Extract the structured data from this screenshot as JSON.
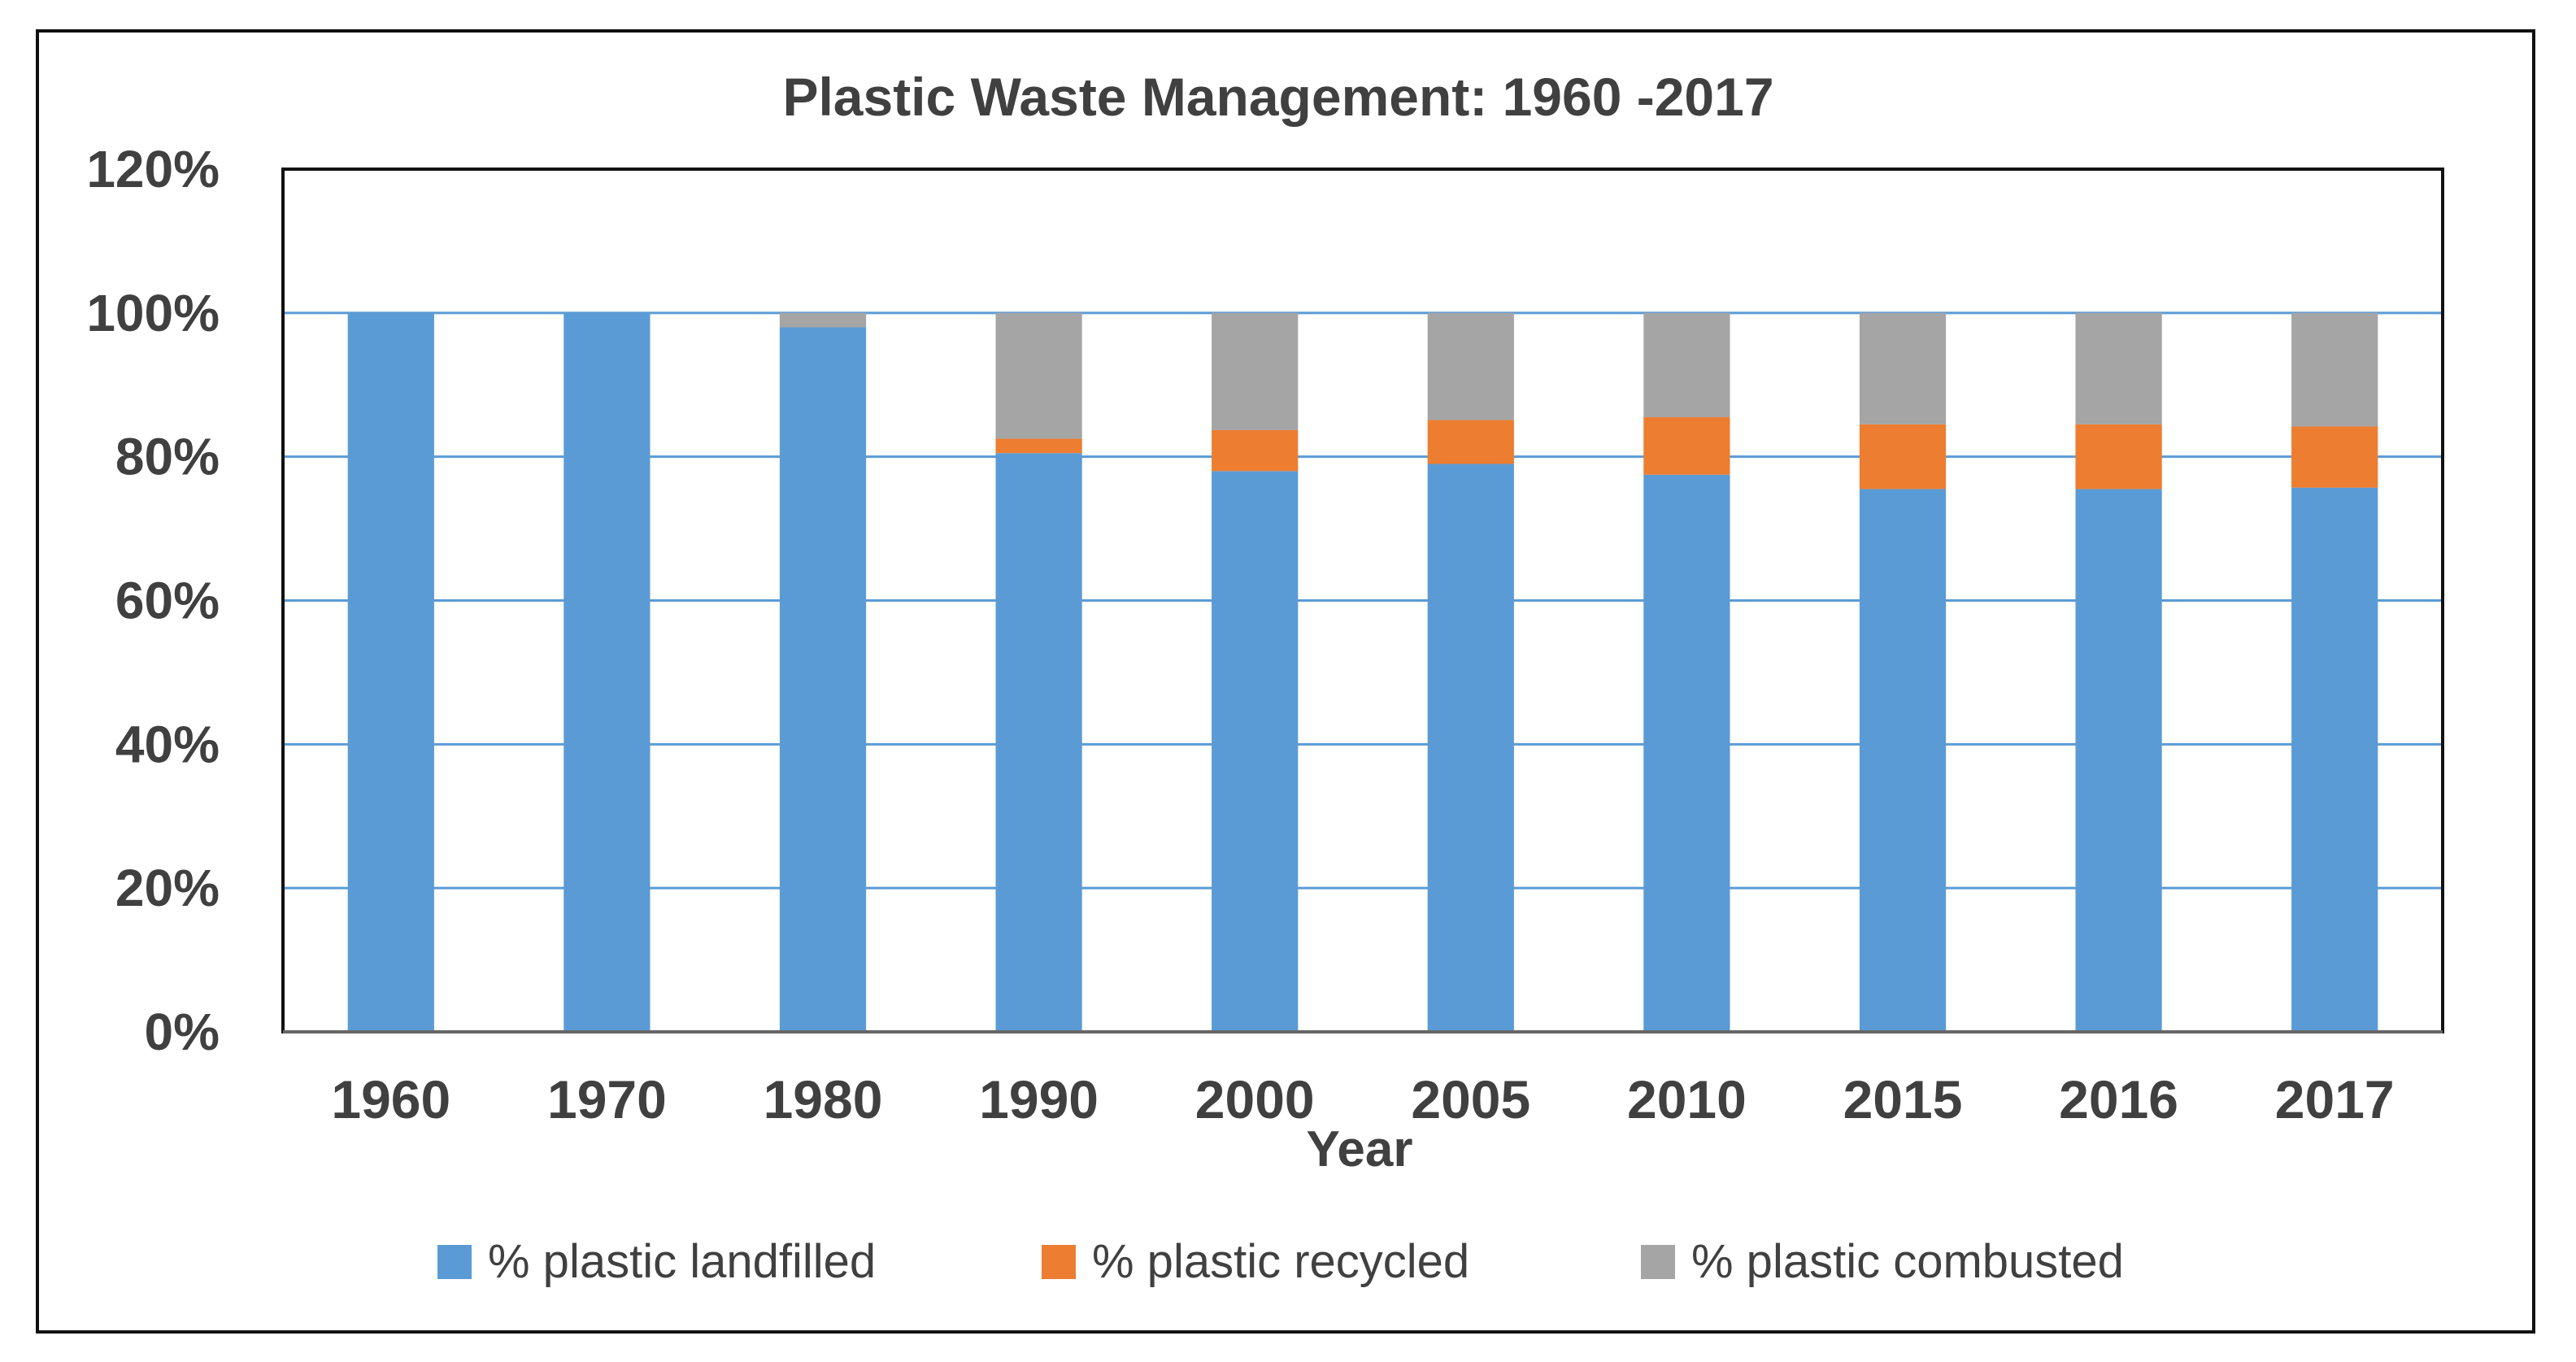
{
  "chart_data": {
    "type": "bar",
    "stacked": true,
    "title": "Plastic Waste Management: 1960 -2017",
    "xlabel": "Year",
    "ylabel": "",
    "ylim": [
      0,
      1.2
    ],
    "y_ticks": [
      "0%",
      "20%",
      "40%",
      "60%",
      "80%",
      "100%",
      "120%"
    ],
    "y_tick_values": [
      0,
      0.2,
      0.4,
      0.6,
      0.8,
      1.0,
      1.2
    ],
    "grid": true,
    "legend_position": "bottom",
    "categories": [
      "1960",
      "1970",
      "1980",
      "1990",
      "2000",
      "2005",
      "2010",
      "2015",
      "2016",
      "2017"
    ],
    "series": [
      {
        "name": "% plastic landfilled",
        "color": "#5B9BD5",
        "values": [
          1.0,
          1.0,
          0.98,
          0.805,
          0.78,
          0.79,
          0.775,
          0.755,
          0.755,
          0.757
        ]
      },
      {
        "name": "% plastic recycled",
        "color": "#ED7D31",
        "values": [
          0,
          0,
          0,
          0.02,
          0.057,
          0.061,
          0.08,
          0.09,
          0.09,
          0.085
        ]
      },
      {
        "name": "% plastic combusted",
        "color": "#A5A5A5",
        "values": [
          0,
          0,
          0.02,
          0.175,
          0.163,
          0.149,
          0.145,
          0.155,
          0.155,
          0.158
        ]
      }
    ]
  }
}
